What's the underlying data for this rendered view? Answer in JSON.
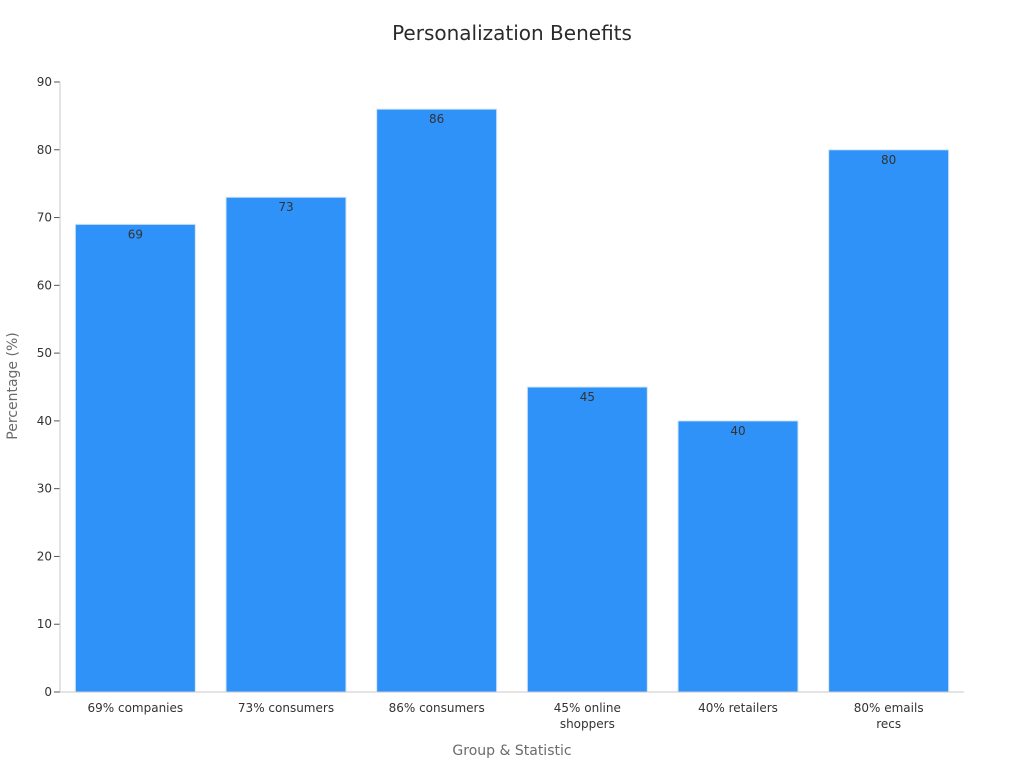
{
  "chart_data": {
    "type": "bar",
    "title": "Personalization Benefits",
    "xlabel": "Group & Statistic",
    "ylabel": "Percentage (%)",
    "categories": [
      [
        "69% companies"
      ],
      [
        "73% consumers"
      ],
      [
        "86% consumers"
      ],
      [
        "45% online",
        "shoppers"
      ],
      [
        "40% retailers"
      ],
      [
        "80% emails",
        "recs"
      ]
    ],
    "values": [
      69,
      73,
      86,
      45,
      40,
      80
    ],
    "data_labels": [
      "69",
      "73",
      "86",
      "45",
      "40",
      "80"
    ],
    "ylim": [
      0,
      90
    ],
    "yticks": [
      0,
      10,
      20,
      30,
      40,
      50,
      60,
      70,
      80,
      90
    ],
    "ytick_labels": [
      "0",
      "10",
      "20",
      "30",
      "40",
      "50",
      "60",
      "70",
      "80",
      "90"
    ],
    "grid": false,
    "legend": "none",
    "bar_color": "#2f92f8",
    "bar_edge_color": "#d6e6f6"
  }
}
